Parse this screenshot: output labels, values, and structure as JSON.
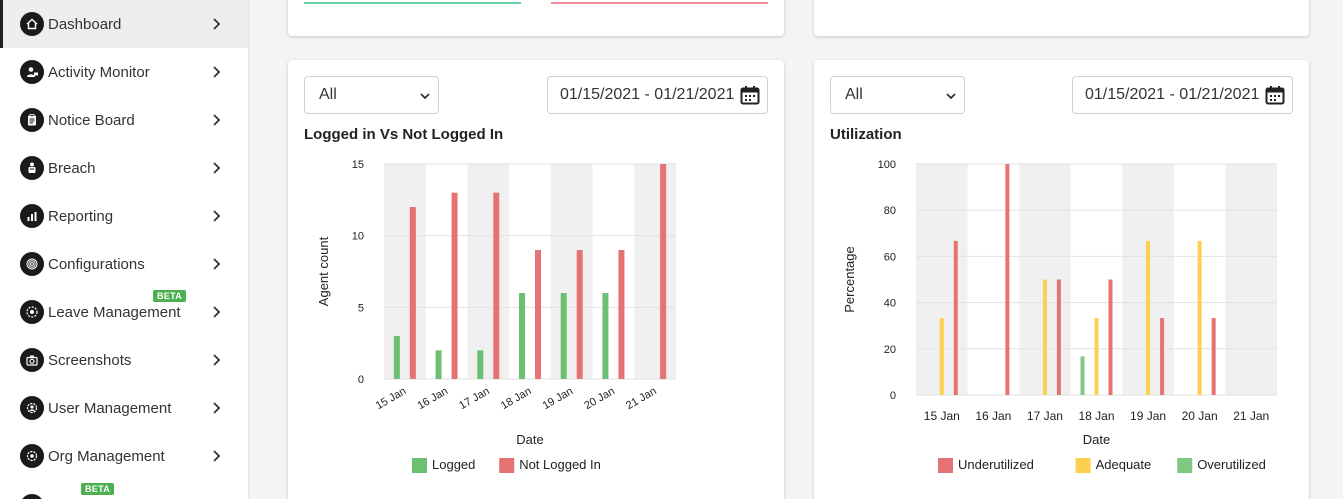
{
  "sidebar": {
    "items": [
      {
        "label": "Dashboard",
        "icon": "home-icon",
        "active": true
      },
      {
        "label": "Activity Monitor",
        "icon": "user-monitor-icon"
      },
      {
        "label": "Notice Board",
        "icon": "clipboard-icon"
      },
      {
        "label": "Breach",
        "icon": "breach-icon"
      },
      {
        "label": "Reporting",
        "icon": "bar-report-icon"
      },
      {
        "label": "Configurations",
        "icon": "fingerprint-icon"
      },
      {
        "label": "Leave Management",
        "icon": "leave-icon",
        "badge": "BETA"
      },
      {
        "label": "Screenshots",
        "icon": "camera-icon"
      },
      {
        "label": "User Management",
        "icon": "users-gear-icon"
      },
      {
        "label": "Org Management",
        "icon": "org-icon"
      }
    ],
    "partial_badge": "BETA"
  },
  "colors": {
    "logged": "#6cc071",
    "not_logged": "#e57373",
    "underutilized": "#e57373",
    "adequate": "#fdd14f",
    "overutilized": "#81c784",
    "band": "#f0f0f0",
    "top_green": "#6ccfa4",
    "top_pink": "#ec8f9a"
  },
  "left_panel": {
    "filter_value": "All",
    "date_range": "01/15/2021 - 01/21/2021",
    "title": "Logged in Vs Not Logged In"
  },
  "right_panel": {
    "filter_value": "All",
    "date_range": "01/15/2021 - 01/21/2021",
    "title": "Utilization"
  },
  "chart_data": [
    {
      "type": "bar",
      "title": "Logged in Vs Not Logged In",
      "categories": [
        "15 Jan",
        "16 Jan",
        "17 Jan",
        "18 Jan",
        "19 Jan",
        "20 Jan",
        "21 Jan"
      ],
      "series": [
        {
          "name": "Logged",
          "values": [
            3,
            2,
            2,
            6,
            6,
            6,
            0
          ]
        },
        {
          "name": "Not Logged In",
          "values": [
            12,
            13,
            13,
            9,
            9,
            9,
            15
          ]
        }
      ],
      "xlabel": "Date",
      "ylabel": "Agent count",
      "ylim": [
        0,
        15
      ],
      "yticks": [
        0,
        5,
        10,
        15
      ],
      "legend": "bottom",
      "grid": true
    },
    {
      "type": "bar",
      "title": "Utilization",
      "categories": [
        "15 Jan",
        "16 Jan",
        "17 Jan",
        "18 Jan",
        "19 Jan",
        "20 Jan",
        "21 Jan"
      ],
      "series": [
        {
          "name": "Overutilized",
          "values": [
            0,
            0,
            0,
            16.7,
            0,
            0,
            0
          ]
        },
        {
          "name": "Adequate",
          "values": [
            33.3,
            0,
            50,
            33.3,
            66.7,
            66.7,
            0
          ]
        },
        {
          "name": "Underutilized",
          "values": [
            66.7,
            100,
            50,
            50,
            33.3,
            33.3,
            0
          ]
        }
      ],
      "legend_order": [
        "Underutilized",
        "Adequate",
        "Overutilized"
      ],
      "xlabel": "Date",
      "ylabel": "Percentage",
      "ylim": [
        0,
        100
      ],
      "yticks": [
        0,
        20,
        40,
        60,
        80,
        100
      ],
      "legend": "bottom",
      "grid": true
    }
  ]
}
